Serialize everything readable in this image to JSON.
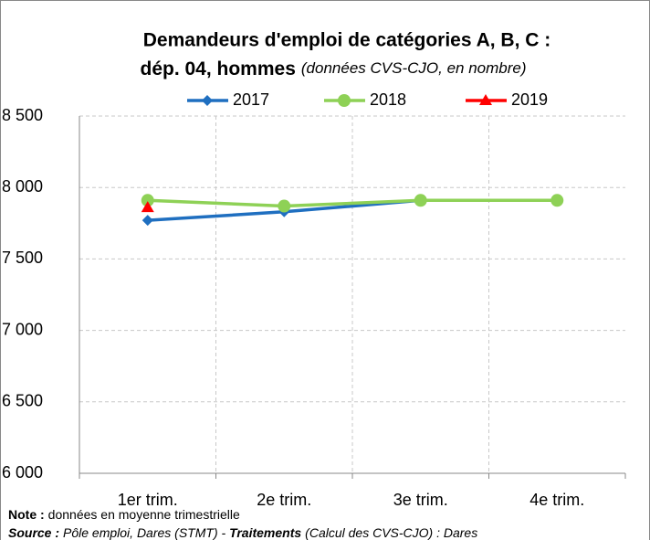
{
  "chart_data": {
    "type": "line",
    "title": "Demandeurs d'emploi de catégories A, B, C :",
    "subtitle": "dép. 04, hommes",
    "subtitle_note": "(données CVS-CJO, en nombre)",
    "categories": [
      "1er trim.",
      "2e trim.",
      "3e trim.",
      "4e trim."
    ],
    "series": [
      {
        "name": "2017",
        "color": "#1f6fc0",
        "marker": "diamond",
        "values": [
          7770,
          7830,
          7910,
          7910
        ]
      },
      {
        "name": "2018",
        "color": "#8ed156",
        "marker": "circle",
        "values": [
          7910,
          7870,
          7910,
          7910
        ]
      },
      {
        "name": "2019",
        "color": "#ff0000",
        "marker": "triangle",
        "values": [
          7860,
          null,
          null,
          null
        ]
      }
    ],
    "ylim": [
      6000,
      8500
    ],
    "yticks": [
      {
        "value": 6000,
        "label": "6 000"
      },
      {
        "value": 6500,
        "label": "6 500"
      },
      {
        "value": 7000,
        "label": "7 000"
      },
      {
        "value": 7500,
        "label": "7 500"
      },
      {
        "value": 8000,
        "label": "8 000"
      },
      {
        "value": 8500,
        "label": "8 500"
      }
    ],
    "grid": true,
    "legend": "top",
    "note_label": "Note :",
    "note": "données en moyenne trimestrielle",
    "source_label": "Source :",
    "source_text": "Pôle emploi, Dares (STMT) - ",
    "source_label2": "Traitements",
    "source_text2": "(Calcul des CVS-CJO) : Dares"
  }
}
